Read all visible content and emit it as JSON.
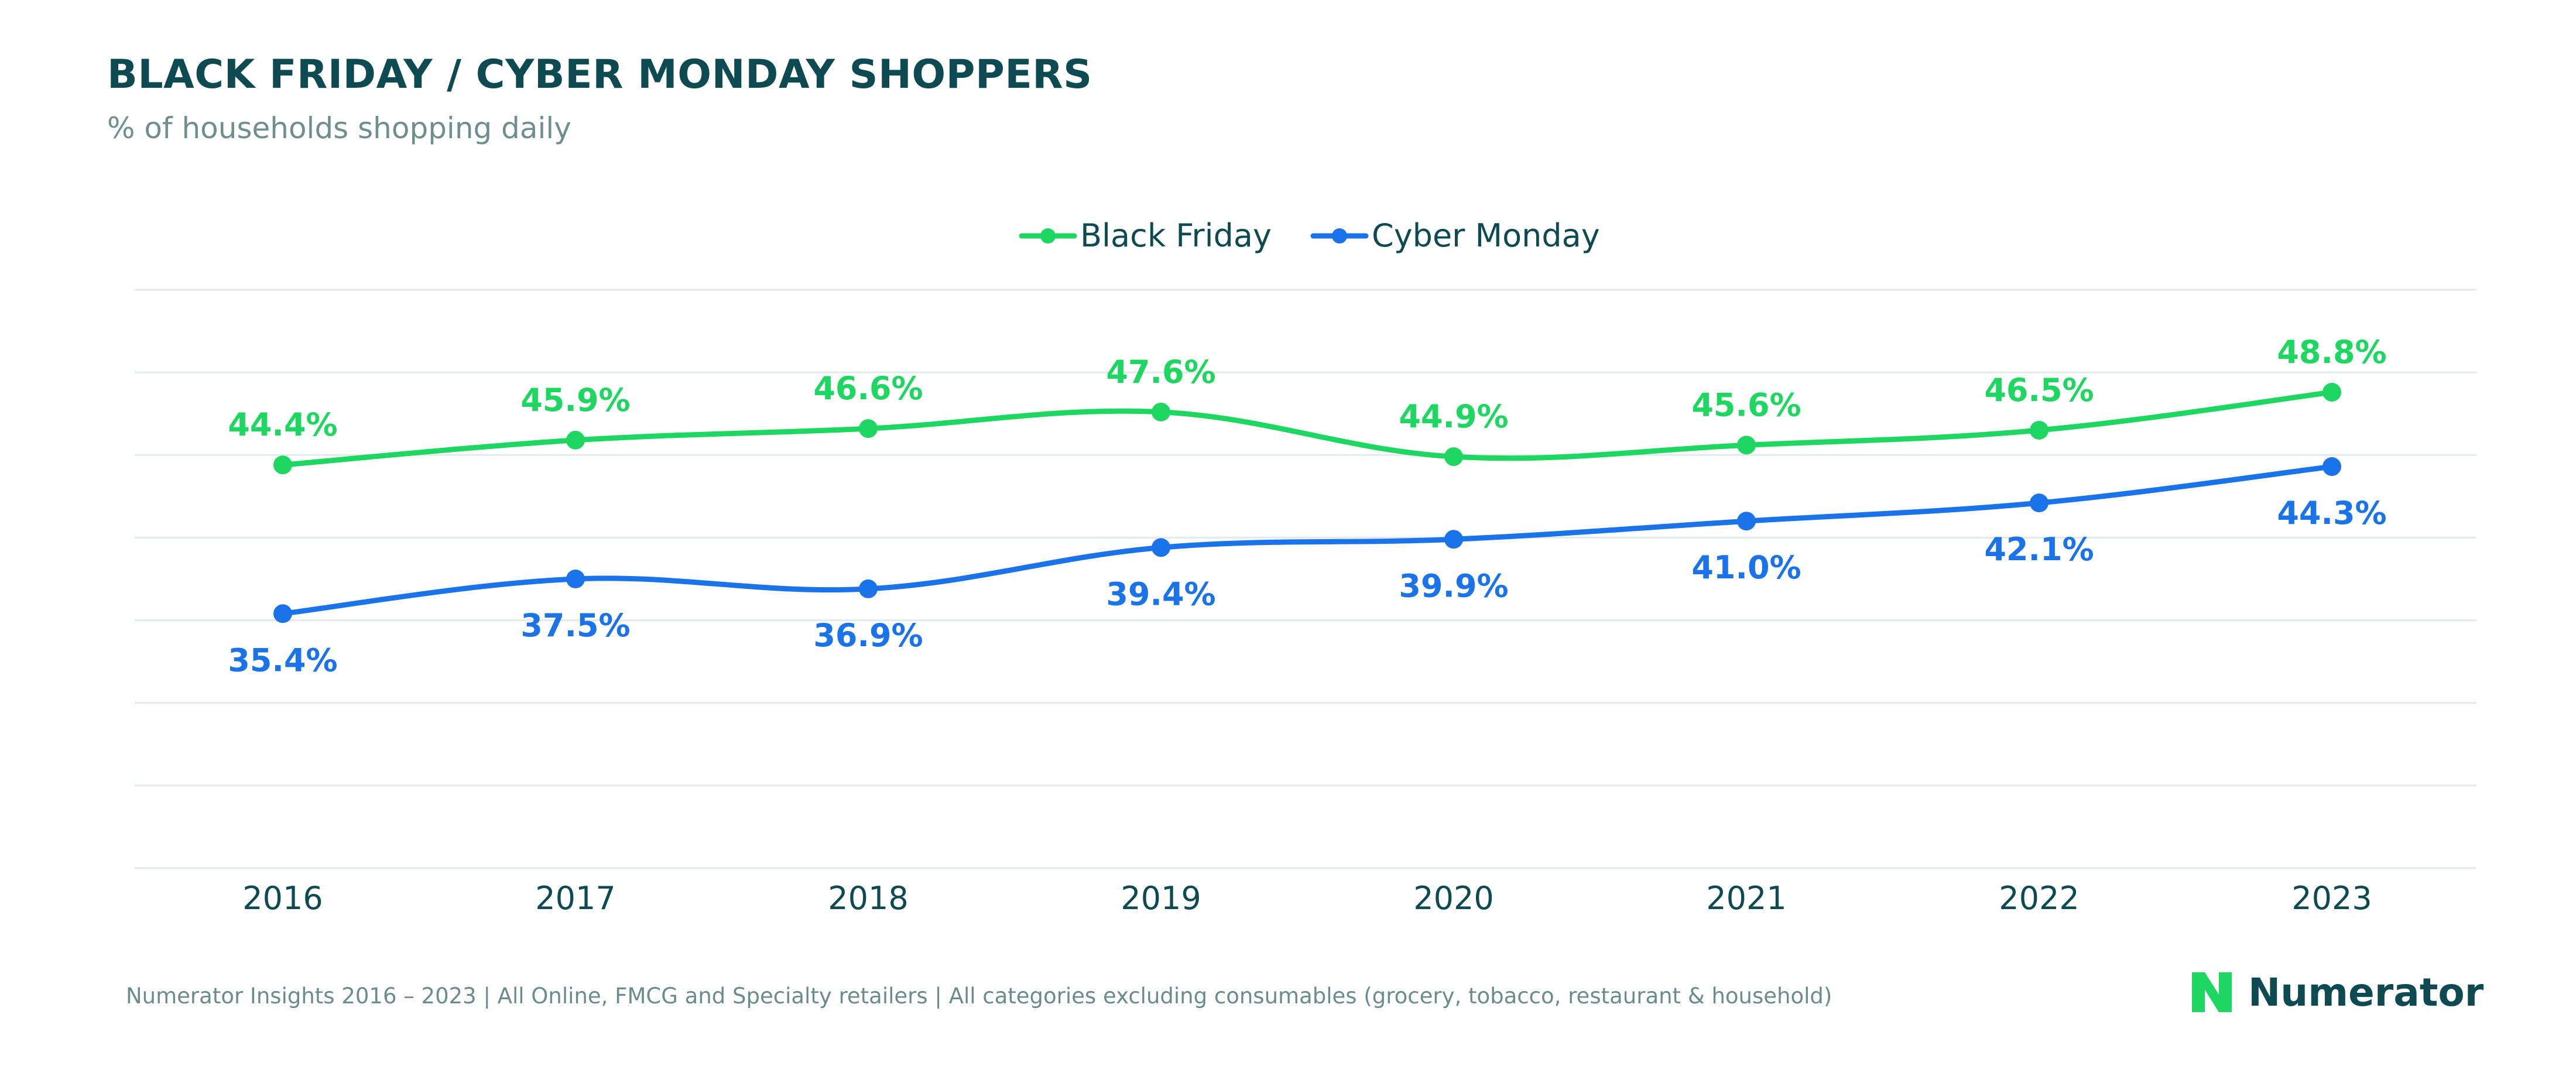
{
  "header": {
    "title": "BLACK FRIDAY / CYBER MONDAY SHOPPERS",
    "subtitle": "% of households shopping daily"
  },
  "footer": {
    "source": "Numerator Insights 2016 – 2023 | All Online, FMCG and Specialty retailers | All categories excluding consumables (grocery, tobacco, restaurant & household)",
    "brand": "Numerator"
  },
  "colors": {
    "black_friday": "#1ed760",
    "cyber_monday": "#1a73e8",
    "title": "#0d4a52",
    "grid": "#e3e8ea",
    "brand": "#1ed760"
  },
  "chart_data": {
    "type": "line",
    "title": "BLACK FRIDAY / CYBER MONDAY SHOPPERS",
    "subtitle": "% of households shopping daily",
    "xlabel": "",
    "ylabel": "",
    "categories": [
      "2016",
      "2017",
      "2018",
      "2019",
      "2020",
      "2021",
      "2022",
      "2023"
    ],
    "series": [
      {
        "name": "Black Friday",
        "values": [
          44.4,
          45.9,
          46.6,
          47.6,
          44.9,
          45.6,
          46.5,
          48.8
        ],
        "labels": [
          "44.4%",
          "45.9%",
          "46.6%",
          "47.6%",
          "44.9%",
          "45.6%",
          "46.5%",
          "48.8%"
        ],
        "label_position": "above"
      },
      {
        "name": "Cyber Monday",
        "values": [
          35.4,
          37.5,
          36.9,
          39.4,
          39.9,
          41.0,
          42.1,
          44.3
        ],
        "labels": [
          "35.4%",
          "37.5%",
          "36.9%",
          "39.4%",
          "39.9%",
          "41.0%",
          "42.1%",
          "44.3%"
        ],
        "label_position": "below"
      }
    ],
    "ylim": [
      20,
      55
    ],
    "grid": "horizontal",
    "y_tick_labels_visible": false,
    "legend_position": "top-center",
    "smooth": true,
    "markers": true
  }
}
